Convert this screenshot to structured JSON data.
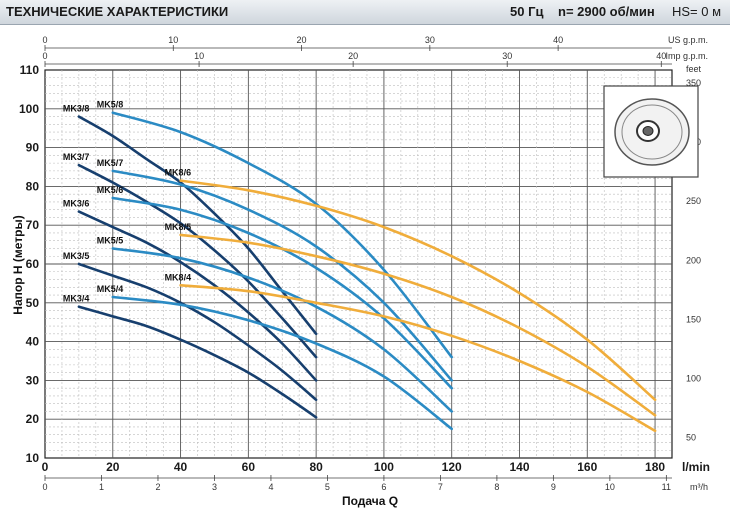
{
  "header": {
    "title": "ТЕХНИЧЕСКИЕ ХАРАКТЕРИСТИКИ",
    "frequency": "50 Гц",
    "speed": "n= 2900  об/мин",
    "hs": "HS= 0 м"
  },
  "colors": {
    "mk3": "#173f6e",
    "mk5": "#2b8bc4",
    "mk8": "#f0ad3b",
    "grid": "#9a9a9a"
  },
  "chart_data": {
    "type": "line",
    "xlabel": "Подача Q",
    "ylabel": "Напор H (метры)",
    "xunit_primary": "l/min",
    "xunit_bottom": "m³/h",
    "xunit_top1": "US g.p.m.",
    "xunit_top2": "Imp g.p.m.",
    "yunit_right": "feet",
    "xlim": [
      0,
      185
    ],
    "ylim": [
      10,
      110
    ],
    "x_ticks": [
      0,
      20,
      40,
      60,
      80,
      100,
      120,
      140,
      160,
      180
    ],
    "y_ticks": [
      10,
      20,
      30,
      40,
      50,
      60,
      70,
      80,
      90,
      100,
      110
    ],
    "m3h_ticks": [
      "0",
      "1",
      "2",
      "3",
      "4",
      "5",
      "6",
      "7",
      "8",
      "9",
      "10",
      "11"
    ],
    "usgpm_ticks": [
      "0",
      "10",
      "20",
      "30",
      "40"
    ],
    "impgpm_ticks": [
      "0",
      "10",
      "20",
      "30",
      "40"
    ],
    "feet_ticks": [
      "50",
      "100",
      "150",
      "200",
      "250",
      "300",
      "350"
    ],
    "series": [
      {
        "name": "MK3/8",
        "group": "mk3",
        "x": [
          10,
          20,
          30,
          40,
          50,
          60,
          70,
          80
        ],
        "y": [
          98,
          93,
          87,
          81,
          73,
          64,
          53,
          42
        ]
      },
      {
        "name": "MK3/7",
        "group": "mk3",
        "x": [
          10,
          20,
          30,
          40,
          50,
          60,
          70,
          80
        ],
        "y": [
          85.5,
          81,
          76,
          70.5,
          63.5,
          55.5,
          46,
          36
        ]
      },
      {
        "name": "MK3/6",
        "group": "mk3",
        "x": [
          10,
          20,
          30,
          40,
          50,
          60,
          70,
          80
        ],
        "y": [
          73.5,
          69.5,
          65.5,
          60.5,
          54.5,
          47.5,
          39.5,
          30
        ]
      },
      {
        "name": "MK3/5",
        "group": "mk3",
        "x": [
          10,
          20,
          30,
          40,
          50,
          60,
          70,
          80
        ],
        "y": [
          60,
          57,
          54,
          50,
          45,
          39,
          32.5,
          25
        ]
      },
      {
        "name": "MK3/4",
        "group": "mk3",
        "x": [
          10,
          20,
          30,
          40,
          50,
          60,
          70,
          80
        ],
        "y": [
          49,
          46.5,
          44,
          40.5,
          36.5,
          32,
          26.5,
          20.5
        ]
      },
      {
        "name": "MK5/8",
        "group": "mk5",
        "x": [
          20,
          40,
          60,
          80,
          100,
          120
        ],
        "y": [
          99,
          94,
          86,
          75.5,
          58.5,
          36
        ]
      },
      {
        "name": "MK5/7",
        "group": "mk5",
        "x": [
          20,
          40,
          60,
          80,
          100,
          120
        ],
        "y": [
          84,
          80.5,
          74,
          64.5,
          50,
          30
        ]
      },
      {
        "name": "MK5/6",
        "group": "mk5",
        "x": [
          20,
          40,
          60,
          80,
          100,
          120
        ],
        "y": [
          77,
          74,
          68,
          59,
          46,
          28
        ]
      },
      {
        "name": "MK5/5",
        "group": "mk5",
        "x": [
          20,
          40,
          60,
          80,
          100,
          120
        ],
        "y": [
          64,
          61.5,
          56.5,
          49,
          38,
          22
        ]
      },
      {
        "name": "MK5/4",
        "group": "mk5",
        "x": [
          20,
          40,
          60,
          80,
          100,
          120
        ],
        "y": [
          51.5,
          49.5,
          45.5,
          39.5,
          31,
          17.5
        ]
      },
      {
        "name": "MK8/6",
        "group": "mk8",
        "x": [
          40,
          60,
          80,
          100,
          120,
          140,
          160,
          180
        ],
        "y": [
          81.5,
          79,
          75,
          69.5,
          62,
          52.5,
          40.5,
          25
        ]
      },
      {
        "name": "MK8/5",
        "group": "mk8",
        "x": [
          40,
          60,
          80,
          100,
          120,
          140,
          160,
          180
        ],
        "y": [
          67.5,
          65.5,
          62,
          57.5,
          51.5,
          43.5,
          33.5,
          21
        ]
      },
      {
        "name": "MK8/4",
        "group": "mk8",
        "x": [
          40,
          60,
          80,
          100,
          120,
          140,
          160,
          180
        ],
        "y": [
          54.5,
          53,
          50,
          46.5,
          41.5,
          35,
          27,
          17
        ]
      }
    ]
  }
}
